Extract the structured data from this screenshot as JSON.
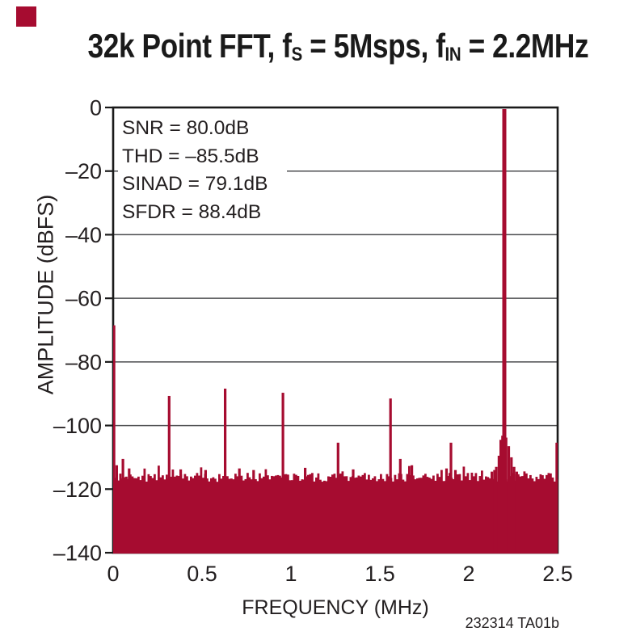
{
  "watermark": "232314 TA01b",
  "colors": {
    "bar": "#A60C30",
    "grid": "#4D4E50",
    "axis": "#1A1A1A",
    "text": "#231F20",
    "background": "#FFFFFF"
  },
  "title_segments": [
    {
      "text": "32k Point FFT, f"
    },
    {
      "text": "S",
      "sub": true
    },
    {
      "text": " = 5Msps, f"
    },
    {
      "text": "IN",
      "sub": true
    },
    {
      "text": " = 2.2MHz"
    }
  ],
  "chart_data": {
    "type": "bar",
    "title": "32k Point FFT, fS = 5Msps, fIN = 2.2MHz",
    "xlabel": "FREQUENCY (MHz)",
    "ylabel": "AMPLITUDE (dBFS)",
    "xlim": [
      0,
      2.5
    ],
    "ylim": [
      -140,
      0
    ],
    "x_ticks": [
      0,
      0.5,
      1,
      1.5,
      2,
      2.5
    ],
    "x_tick_labels": [
      "0",
      "0.5",
      "1",
      "1.5",
      "2",
      "2.5"
    ],
    "y_ticks": [
      0,
      -20,
      -40,
      -60,
      -80,
      -100,
      -120,
      -140
    ],
    "y_tick_labels": [
      "0",
      "–20",
      "–40",
      "–60",
      "–80",
      "–100",
      "–120",
      "–140"
    ],
    "grid": "horizontal",
    "legend": "none",
    "annotations": [
      "SNR = 80.0dB",
      "THD = –85.5dB",
      "SINAD = 79.1dB",
      "SFDR = 88.4dB"
    ],
    "fundamental_mhz": 2.2,
    "fundamental_dbfs": -0.5,
    "spurs": [
      {
        "f_mhz": 0.005,
        "dbfs": -68.5
      },
      {
        "f_mhz": 0.02,
        "dbfs": -112.5
      },
      {
        "f_mhz": 0.055,
        "dbfs": -110.5
      },
      {
        "f_mhz": 0.09,
        "dbfs": -113.5
      },
      {
        "f_mhz": 0.315,
        "dbfs": -90.7
      },
      {
        "f_mhz": 0.38,
        "dbfs": -113.8
      },
      {
        "f_mhz": 0.52,
        "dbfs": -114.0
      },
      {
        "f_mhz": 0.63,
        "dbfs": -88.4
      },
      {
        "f_mhz": 0.71,
        "dbfs": -113.5
      },
      {
        "f_mhz": 0.79,
        "dbfs": -114.0
      },
      {
        "f_mhz": 0.955,
        "dbfs": -89.7
      },
      {
        "f_mhz": 1.08,
        "dbfs": -113.3
      },
      {
        "f_mhz": 1.265,
        "dbfs": -105.4
      },
      {
        "f_mhz": 1.35,
        "dbfs": -113.8
      },
      {
        "f_mhz": 1.56,
        "dbfs": -91.5
      },
      {
        "f_mhz": 1.615,
        "dbfs": -110.5
      },
      {
        "f_mhz": 1.68,
        "dbfs": -112.5
      },
      {
        "f_mhz": 1.875,
        "dbfs": -113.5
      },
      {
        "f_mhz": 1.9,
        "dbfs": -105.4
      },
      {
        "f_mhz": 1.925,
        "dbfs": -114.0
      },
      {
        "f_mhz": 2.13,
        "dbfs": -114.5
      },
      {
        "f_mhz": 2.145,
        "dbfs": -114.0
      },
      {
        "f_mhz": 2.155,
        "dbfs": -113.0
      },
      {
        "f_mhz": 2.17,
        "dbfs": -109.5
      },
      {
        "f_mhz": 2.18,
        "dbfs": -104.5
      },
      {
        "f_mhz": 2.19,
        "dbfs": -103.2
      },
      {
        "f_mhz": 2.2,
        "dbfs": -0.5
      },
      {
        "f_mhz": 2.21,
        "dbfs": -103.8
      },
      {
        "f_mhz": 2.225,
        "dbfs": -106.5
      },
      {
        "f_mhz": 2.24,
        "dbfs": -110.0
      },
      {
        "f_mhz": 2.255,
        "dbfs": -113.0
      },
      {
        "f_mhz": 2.27,
        "dbfs": -114.5
      },
      {
        "f_mhz": 2.495,
        "dbfs": -105.4
      }
    ],
    "noise_floor": {
      "mean_dbfs": -116.3,
      "min_dbfs": -117.7,
      "max_dbfs": -111.9,
      "fill_to_dbfs": -140
    }
  }
}
